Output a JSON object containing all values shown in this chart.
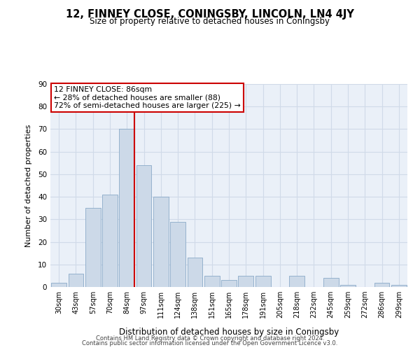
{
  "title": "12, FINNEY CLOSE, CONINGSBY, LINCOLN, LN4 4JY",
  "subtitle": "Size of property relative to detached houses in Coningsby",
  "xlabel": "Distribution of detached houses by size in Coningsby",
  "ylabel": "Number of detached properties",
  "bar_color": "#ccd9e8",
  "bar_edge_color": "#8aaac8",
  "categories": [
    "30sqm",
    "43sqm",
    "57sqm",
    "70sqm",
    "84sqm",
    "97sqm",
    "111sqm",
    "124sqm",
    "138sqm",
    "151sqm",
    "165sqm",
    "178sqm",
    "191sqm",
    "205sqm",
    "218sqm",
    "232sqm",
    "245sqm",
    "259sqm",
    "272sqm",
    "286sqm",
    "299sqm"
  ],
  "values": [
    2,
    6,
    35,
    41,
    70,
    54,
    40,
    29,
    13,
    5,
    3,
    5,
    5,
    0,
    5,
    0,
    4,
    1,
    0,
    2,
    1
  ],
  "ylim": [
    0,
    90
  ],
  "yticks": [
    0,
    10,
    20,
    30,
    40,
    50,
    60,
    70,
    80,
    90
  ],
  "vline_bar_index": 4,
  "vline_color": "#cc0000",
  "annotation_title": "12 FINNEY CLOSE: 86sqm",
  "annotation_line1": "← 28% of detached houses are smaller (88)",
  "annotation_line2": "72% of semi-detached houses are larger (225) →",
  "annotation_box_color": "#ffffff",
  "annotation_box_edge": "#cc0000",
  "plot_bg_color": "#eaf0f8",
  "footer1": "Contains HM Land Registry data © Crown copyright and database right 2024.",
  "footer2": "Contains public sector information licensed under the Open Government Licence v3.0.",
  "grid_color": "#d0dae8"
}
